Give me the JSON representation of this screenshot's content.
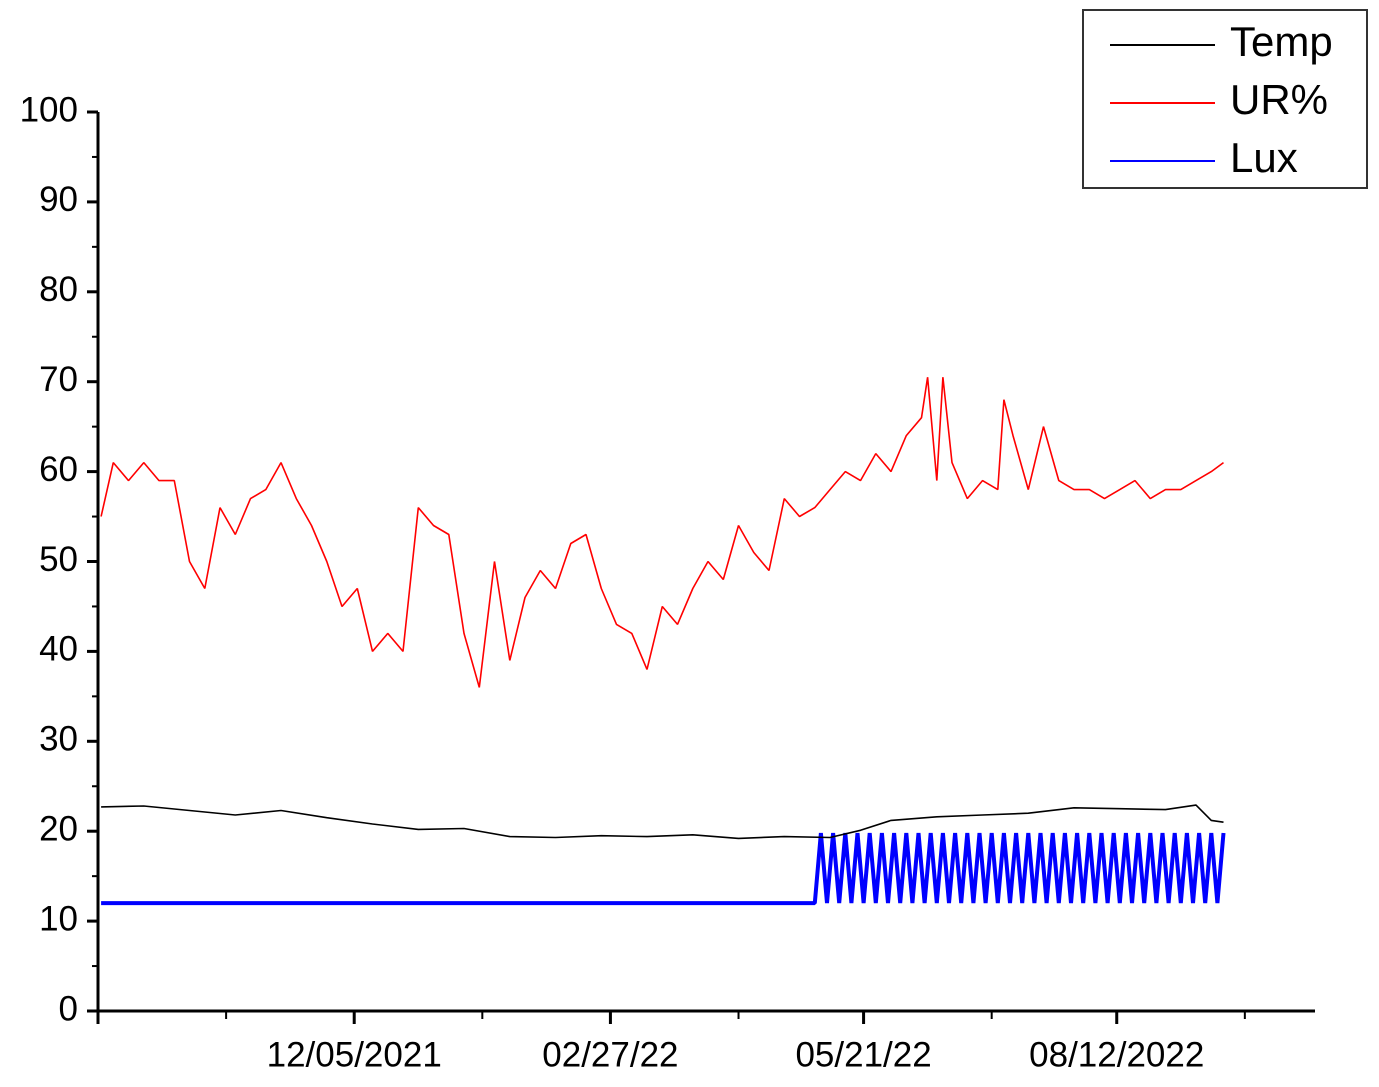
{
  "chart_data": {
    "type": "line",
    "xlim": [
      "2021-09-12",
      "2022-10-16"
    ],
    "xticks": [
      {
        "value": "2021-12-05",
        "label": "12/05/2021"
      },
      {
        "value": "2022-02-27",
        "label": "02/27/22"
      },
      {
        "value": "2022-05-21",
        "label": "05/21/22"
      },
      {
        "value": "2022-08-12",
        "label": "08/12/2022"
      }
    ],
    "ylim": [
      0,
      100
    ],
    "yticks": [
      0,
      10,
      20,
      30,
      40,
      50,
      60,
      70,
      80,
      90,
      100
    ],
    "legend": "top-right",
    "series": [
      {
        "name": "Temp",
        "color": "#000000",
        "x": [
          "2021-09-13",
          "2021-09-27",
          "2021-10-12",
          "2021-10-27",
          "2021-11-11",
          "2021-11-26",
          "2021-12-11",
          "2021-12-26",
          "2022-01-10",
          "2022-01-25",
          "2022-02-09",
          "2022-02-24",
          "2022-03-11",
          "2022-03-26",
          "2022-04-10",
          "2022-04-25",
          "2022-05-10",
          "2022-05-20",
          "2022-05-30",
          "2022-06-14",
          "2022-06-29",
          "2022-07-14",
          "2022-07-29",
          "2022-08-13",
          "2022-08-28",
          "2022-09-07",
          "2022-09-12",
          "2022-09-16"
        ],
        "values": [
          22.7,
          22.8,
          22.3,
          21.8,
          22.3,
          21.5,
          20.8,
          20.2,
          20.3,
          19.4,
          19.3,
          19.5,
          19.4,
          19.6,
          19.2,
          19.4,
          19.3,
          20.1,
          21.2,
          21.6,
          21.8,
          22.0,
          22.6,
          22.5,
          22.4,
          22.9,
          21.2,
          21.0
        ]
      },
      {
        "name": "UR%",
        "color": "#ff0000",
        "x": [
          "2021-09-13",
          "2021-09-17",
          "2021-09-22",
          "2021-09-27",
          "2021-10-02",
          "2021-10-07",
          "2021-10-12",
          "2021-10-17",
          "2021-10-22",
          "2021-10-27",
          "2021-11-01",
          "2021-11-06",
          "2021-11-11",
          "2021-11-16",
          "2021-11-21",
          "2021-11-26",
          "2021-12-01",
          "2021-12-06",
          "2021-12-11",
          "2021-12-16",
          "2021-12-21",
          "2021-12-26",
          "2021-12-31",
          "2022-01-05",
          "2022-01-10",
          "2022-01-15",
          "2022-01-20",
          "2022-01-25",
          "2022-01-30",
          "2022-02-04",
          "2022-02-09",
          "2022-02-14",
          "2022-02-19",
          "2022-02-24",
          "2022-03-01",
          "2022-03-06",
          "2022-03-11",
          "2022-03-16",
          "2022-03-21",
          "2022-03-26",
          "2022-03-31",
          "2022-04-05",
          "2022-04-10",
          "2022-04-15",
          "2022-04-20",
          "2022-04-25",
          "2022-04-30",
          "2022-05-05",
          "2022-05-10",
          "2022-05-15",
          "2022-05-20",
          "2022-05-25",
          "2022-05-30",
          "2022-06-04",
          "2022-06-09",
          "2022-06-11",
          "2022-06-14",
          "2022-06-16",
          "2022-06-19",
          "2022-06-24",
          "2022-06-29",
          "2022-07-04",
          "2022-07-06",
          "2022-07-09",
          "2022-07-14",
          "2022-07-19",
          "2022-07-24",
          "2022-07-29",
          "2022-08-03",
          "2022-08-08",
          "2022-08-13",
          "2022-08-18",
          "2022-08-23",
          "2022-08-28",
          "2022-09-02",
          "2022-09-07",
          "2022-09-12",
          "2022-09-16"
        ],
        "values": [
          55,
          61,
          59,
          61,
          59,
          59,
          50,
          47,
          56,
          53,
          57,
          58,
          61,
          57,
          54,
          50,
          45,
          47,
          40,
          42,
          40,
          56,
          54,
          53,
          42,
          36,
          50,
          39,
          46,
          49,
          47,
          52,
          53,
          47,
          43,
          42,
          38,
          45,
          43,
          47,
          50,
          48,
          54,
          51,
          49,
          57,
          55,
          56,
          58,
          60,
          59,
          62,
          60,
          64,
          66,
          70.5,
          59,
          70.5,
          61,
          57,
          59,
          58,
          68,
          64,
          58,
          65,
          59,
          58,
          58,
          57,
          58,
          59,
          57,
          58,
          58,
          59,
          60,
          61
        ]
      },
      {
        "name": "Lux",
        "color": "#0000ff",
        "x": [
          "2021-09-13",
          "2022-05-05",
          "2022-05-07",
          "2022-05-09",
          "2022-05-11",
          "2022-05-13",
          "2022-05-15",
          "2022-05-17",
          "2022-05-19",
          "2022-05-21",
          "2022-05-23",
          "2022-05-25",
          "2022-05-27",
          "2022-05-29",
          "2022-05-31",
          "2022-06-02",
          "2022-06-04",
          "2022-06-06",
          "2022-06-08",
          "2022-06-10",
          "2022-06-12",
          "2022-06-14",
          "2022-06-16",
          "2022-06-18",
          "2022-06-20",
          "2022-06-22",
          "2022-06-24",
          "2022-06-26",
          "2022-06-28",
          "2022-06-30",
          "2022-07-02",
          "2022-07-04",
          "2022-07-06",
          "2022-07-08",
          "2022-07-10",
          "2022-07-12",
          "2022-07-14",
          "2022-07-16",
          "2022-07-18",
          "2022-07-20",
          "2022-07-22",
          "2022-07-24",
          "2022-07-26",
          "2022-07-28",
          "2022-07-30",
          "2022-08-01",
          "2022-08-03",
          "2022-08-05",
          "2022-08-07",
          "2022-08-09",
          "2022-08-11",
          "2022-08-13",
          "2022-08-15",
          "2022-08-17",
          "2022-08-19",
          "2022-08-21",
          "2022-08-23",
          "2022-08-25",
          "2022-08-27",
          "2022-08-29",
          "2022-08-31",
          "2022-09-02",
          "2022-09-04",
          "2022-09-06",
          "2022-09-08",
          "2022-09-10",
          "2022-09-12",
          "2022-09-14",
          "2022-09-16"
        ],
        "values": [
          12,
          12,
          19.8,
          12,
          19.8,
          12,
          19.8,
          12,
          19.8,
          12,
          19.8,
          12,
          19.8,
          12,
          19.8,
          12,
          19.8,
          12,
          19.8,
          12,
          19.8,
          12,
          19.8,
          12,
          19.8,
          12,
          19.8,
          12,
          19.8,
          12,
          19.8,
          12,
          19.8,
          12,
          19.8,
          12,
          19.8,
          12,
          19.8,
          12,
          19.8,
          12,
          19.8,
          12,
          19.8,
          12,
          19.8,
          12,
          19.8,
          12,
          19.8,
          12,
          19.8,
          12,
          19.8,
          12,
          19.8,
          12,
          19.8,
          12,
          19.8,
          12,
          19.8,
          12,
          19.8,
          12,
          19.8,
          12,
          19.8
        ]
      }
    ]
  }
}
